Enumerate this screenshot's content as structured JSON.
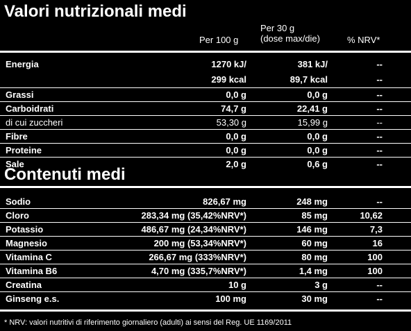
{
  "sections": [
    {
      "title": "Valori nutrizionali medi",
      "header": [
        "Per 100 g",
        [
          "Per 30 g",
          "(dose max/die)"
        ],
        "% NRV*"
      ],
      "rows": [
        {
          "label": "Energia",
          "cells": [
            [
              "1270 kJ/",
              "299 kcal"
            ],
            [
              "381 kJ/",
              "89,7 kcal"
            ],
            [
              "--",
              "--"
            ]
          ]
        },
        {
          "label": "Grassi",
          "cells": [
            "0,0 g",
            "0,0 g",
            "--"
          ]
        },
        {
          "label": "Carboidrati",
          "cells": [
            "74,7 g",
            "22,41 g",
            "--"
          ]
        },
        {
          "label": "di cui zuccheri",
          "cells": [
            "53,30 g",
            "15,99 g",
            "--"
          ],
          "weight": "normal"
        },
        {
          "label": "Fibre",
          "cells": [
            "0,0 g",
            "0,0 g",
            "--"
          ]
        },
        {
          "label": "Proteine",
          "cells": [
            "0,0 g",
            "0,0 g",
            "--"
          ]
        },
        {
          "label": "Sale",
          "cells": [
            "2,0 g",
            "0,6 g",
            "--"
          ]
        }
      ]
    },
    {
      "title": "Contenuti medi",
      "rows": [
        {
          "label": "Sodio",
          "cells": [
            "826,67 mg",
            "248 mg",
            "--"
          ]
        },
        {
          "label": "Cloro",
          "cells": [
            "283,34 mg (35,42%NRV*)",
            "85 mg",
            "10,62"
          ]
        },
        {
          "label": "Potassio",
          "cells": [
            "486,67 mg (24,34%NRV*)",
            "146 mg",
            "7,3"
          ]
        },
        {
          "label": "Magnesio",
          "cells": [
            "200 mg (53,34%NRV*)",
            "60 mg",
            "16"
          ]
        },
        {
          "label": "Vitamina C",
          "cells": [
            "266,67 mg (333%NRV*)",
            "80 mg",
            "100"
          ]
        },
        {
          "label": "Vitamina B6",
          "cells": [
            "4,70 mg (335,7%NRV*)",
            "1,4 mg",
            "100"
          ]
        },
        {
          "label": "Creatina",
          "cells": [
            "10 g",
            "3 g",
            "--"
          ]
        },
        {
          "label": "Ginseng e.s.",
          "cells": [
            "100 mg",
            "30 mg",
            "--"
          ]
        }
      ]
    }
  ],
  "footnote": "* NRV: valori nutritivi di riferimento giornaliero (adulti) ai sensi del Reg. UE 1169/2011"
}
